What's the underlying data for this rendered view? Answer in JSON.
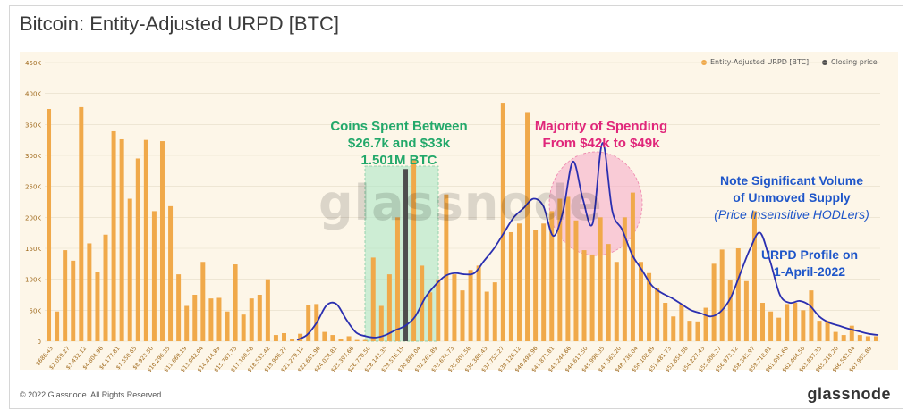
{
  "header": {
    "title": "Bitcoin: Entity-Adjusted URPD [BTC]"
  },
  "legend": {
    "bars_label": "Entity-Adjusted URPD [BTC]",
    "price_label": "Closing price"
  },
  "colors": {
    "bar": "#f0a94a",
    "price": "#4e4e4e",
    "curve": "#2b2fb0",
    "green": "#22a86a",
    "pink": "#e0267a",
    "blue": "#1f56c9",
    "shade_green": "#a7e6c5",
    "shade_pink": "#f7a9c9"
  },
  "annotations": {
    "coins_spent": [
      "Coins Spent Between",
      "$26.7k and $33k",
      "1.501M BTC"
    ],
    "majority": [
      "Majority of Spending",
      "From $42k to $49k"
    ],
    "note": [
      "Note Significant Volume",
      "of Unmoved Supply"
    ],
    "note_italic": "(Price Insensitive HODLers)",
    "profile": [
      "URPD Profile on",
      "1-April-2022"
    ]
  },
  "watermark": "glassnode",
  "footer": {
    "copyright": "© 2022 Glassnode. All Rights Reserved.",
    "brand": "glassnode"
  },
  "chart_data": {
    "type": "bar",
    "ylim": [
      0,
      450000
    ],
    "y_ticks": [
      "0",
      "50K",
      "100K",
      "150K",
      "200K",
      "250K",
      "300K",
      "350K",
      "400K",
      "450K"
    ],
    "x_tick_labels": [
      "686.43",
      "2,059.27",
      "3,432.12",
      "4,804.96",
      "6,177.81",
      "7,550.65",
      "8,923.50",
      "10,296.35",
      "11,669.19",
      "13,042.04",
      "14,414.89",
      "15,787.73",
      "17,160.58",
      "18,533.42",
      "19,906.27",
      "21,279.12",
      "22,651.96",
      "24,024.81",
      "25,397.66",
      "26,770.50",
      "28,143.35",
      "29,516.19",
      "30,889.04",
      "32,261.89",
      "33,634.73",
      "35,007.58",
      "36,380.43",
      "37,753.27",
      "39,126.12",
      "40,498.96",
      "41,871.81",
      "43,244.66",
      "44,617.50",
      "45,990.35",
      "47,363.20",
      "48,736.04",
      "50,108.89",
      "51,481.73",
      "52,854.58",
      "54,227.43",
      "55,600.27",
      "56,973.12",
      "58,345.97",
      "59,718.81",
      "61,091.66",
      "62,464.50",
      "63,837.35",
      "65,210.20",
      "66,583.04",
      "67,955.89"
    ],
    "values": [
      375000,
      48000,
      147000,
      130000,
      378000,
      158000,
      112000,
      172000,
      339000,
      326000,
      230000,
      295000,
      325000,
      210000,
      323000,
      218000,
      108000,
      57000,
      75000,
      128000,
      69000,
      70000,
      48000,
      124000,
      43000,
      69000,
      75000,
      100000,
      10000,
      13000,
      3000,
      12000,
      58000,
      60000,
      15000,
      10000,
      3000,
      8000,
      2000,
      2000,
      135000,
      57000,
      108000,
      200000,
      278000,
      292000,
      122000,
      79000,
      100000,
      237000,
      108000,
      82000,
      115000,
      122000,
      80000,
      95000,
      385000,
      176000,
      190000,
      370000,
      180000,
      190000,
      210000,
      230000,
      233000,
      195000,
      147000,
      140000,
      200000,
      157000,
      128000,
      200000,
      240000,
      128000,
      110000,
      85000,
      62000,
      40000,
      60000,
      33000,
      32000,
      54000,
      125000,
      148000,
      98000,
      150000,
      97000,
      210000,
      62000,
      48000,
      38000,
      60000,
      62000,
      50000,
      82000,
      33000,
      33000,
      15000,
      10000,
      25000,
      10000,
      8000,
      8000
    ],
    "closing_price_index": 44,
    "price_label_value": 29516.19,
    "series": [
      {
        "name": "Entity-Adjusted URPD [BTC]"
      },
      {
        "name": "Closing price"
      }
    ],
    "urpd_profile_curve": [
      2000,
      10000,
      30000,
      58000,
      60000,
      35000,
      14000,
      8000,
      6000,
      10000,
      18000,
      25000,
      40000,
      70000,
      90000,
      105000,
      110000,
      108000,
      110000,
      130000,
      150000,
      175000,
      200000,
      215000,
      230000,
      218000,
      170000,
      210000,
      290000,
      230000,
      190000,
      320000,
      210000,
      180000,
      140000,
      115000,
      90000,
      78000,
      70000,
      60000,
      50000,
      45000,
      40000,
      48000,
      70000,
      110000,
      150000,
      175000,
      130000,
      75000,
      62000,
      65000,
      58000,
      40000,
      30000,
      25000,
      20000,
      16000,
      12000,
      10000
    ]
  }
}
